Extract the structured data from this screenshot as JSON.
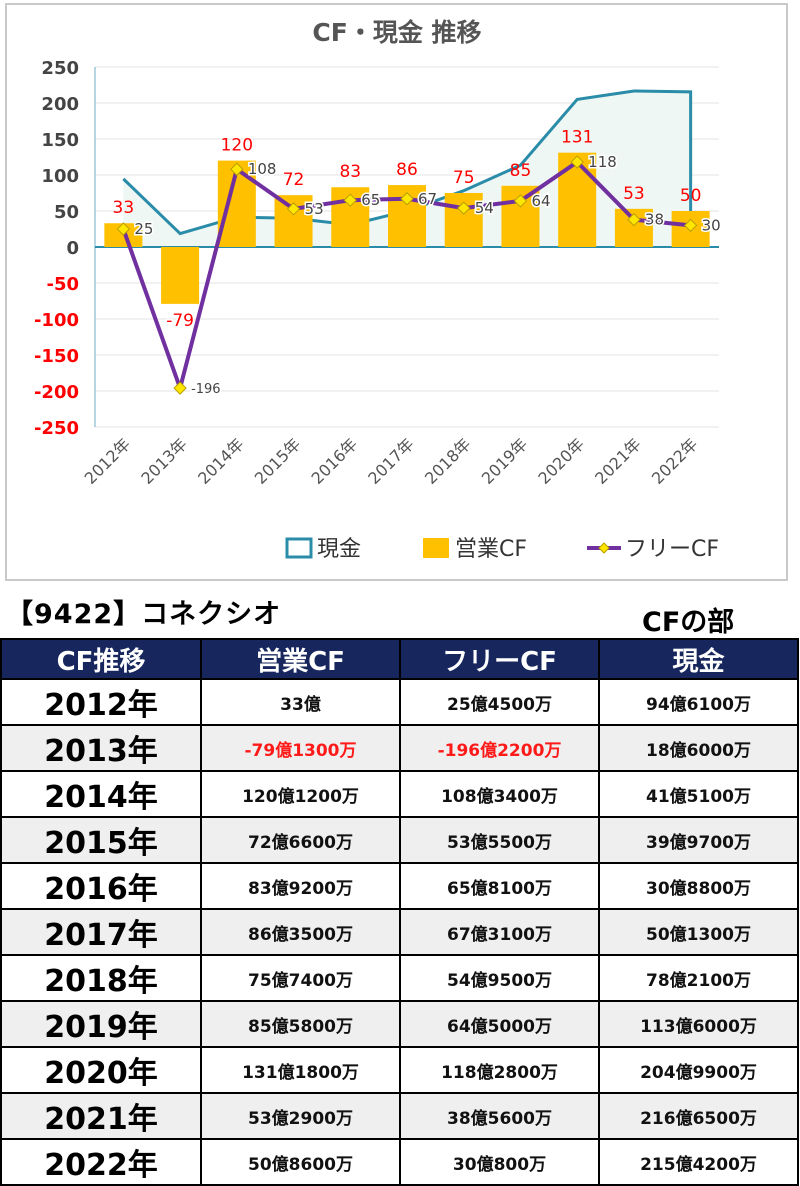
{
  "chart_data": {
    "type": "bar",
    "title": "CF・現金 推移",
    "categories": [
      "2012年",
      "2013年",
      "2014年",
      "2015年",
      "2016年",
      "2017年",
      "2018年",
      "2019年",
      "2020年",
      "2021年",
      "2022年"
    ],
    "ylim": [
      -250,
      250
    ],
    "yticks": [
      250,
      200,
      150,
      100,
      50,
      0,
      -50,
      -100,
      -150,
      -200,
      -250
    ],
    "series": [
      {
        "name": "現金",
        "type": "area",
        "values": [
          94.6,
          18.6,
          41.5,
          39.9,
          30.9,
          50.1,
          78.2,
          113.6,
          204.99,
          216.65,
          215.42
        ]
      },
      {
        "name": "営業CF",
        "type": "bar",
        "values": [
          33,
          -79,
          120,
          72,
          83,
          86,
          75,
          85,
          131,
          53,
          50
        ]
      },
      {
        "name": "フリーCF",
        "type": "line",
        "values": [
          25,
          -196,
          108,
          53,
          65,
          67,
          54,
          64,
          118,
          38,
          30
        ]
      }
    ],
    "legend_position": "bottom-right",
    "grid": true,
    "colors": {
      "cash": "#2a8ca8",
      "cash_fill": "#eef7f4",
      "op": "#ffc000",
      "free": "#7030a0",
      "marker": "#ffe600",
      "op_label": "#ff0000",
      "free_label": "#444444",
      "neg_tick": "#ff0000"
    }
  },
  "header": {
    "company": "【9422】コネクシオ",
    "section": "CFの部"
  },
  "table": {
    "columns": [
      "CF推移",
      "営業CF",
      "フリーCF",
      "現金"
    ],
    "rows": [
      {
        "year": "2012年",
        "op": "33億",
        "free": "25億4500万",
        "cash": "94億6100万",
        "op_neg": false,
        "free_neg": false
      },
      {
        "year": "2013年",
        "op": "-79億1300万",
        "free": "-196億2200万",
        "cash": "18億6000万",
        "op_neg": true,
        "free_neg": true
      },
      {
        "year": "2014年",
        "op": "120億1200万",
        "free": "108億3400万",
        "cash": "41億5100万",
        "op_neg": false,
        "free_neg": false
      },
      {
        "year": "2015年",
        "op": "72億6600万",
        "free": "53億5500万",
        "cash": "39億9700万",
        "op_neg": false,
        "free_neg": false
      },
      {
        "year": "2016年",
        "op": "83億9200万",
        "free": "65億8100万",
        "cash": "30億8800万",
        "op_neg": false,
        "free_neg": false
      },
      {
        "year": "2017年",
        "op": "86億3500万",
        "free": "67億3100万",
        "cash": "50億1300万",
        "op_neg": false,
        "free_neg": false
      },
      {
        "year": "2018年",
        "op": "75億7400万",
        "free": "54億9500万",
        "cash": "78億2100万",
        "op_neg": false,
        "free_neg": false
      },
      {
        "year": "2019年",
        "op": "85億5800万",
        "free": "64億5000万",
        "cash": "113億6000万",
        "op_neg": false,
        "free_neg": false
      },
      {
        "year": "2020年",
        "op": "131億1800万",
        "free": "118億2800万",
        "cash": "204億9900万",
        "op_neg": false,
        "free_neg": false
      },
      {
        "year": "2021年",
        "op": "53億2900万",
        "free": "38億5600万",
        "cash": "216億6500万",
        "op_neg": false,
        "free_neg": false
      },
      {
        "year": "2022年",
        "op": "50億8600万",
        "free": "30億800万",
        "cash": "215億4200万",
        "op_neg": false,
        "free_neg": false
      }
    ]
  }
}
